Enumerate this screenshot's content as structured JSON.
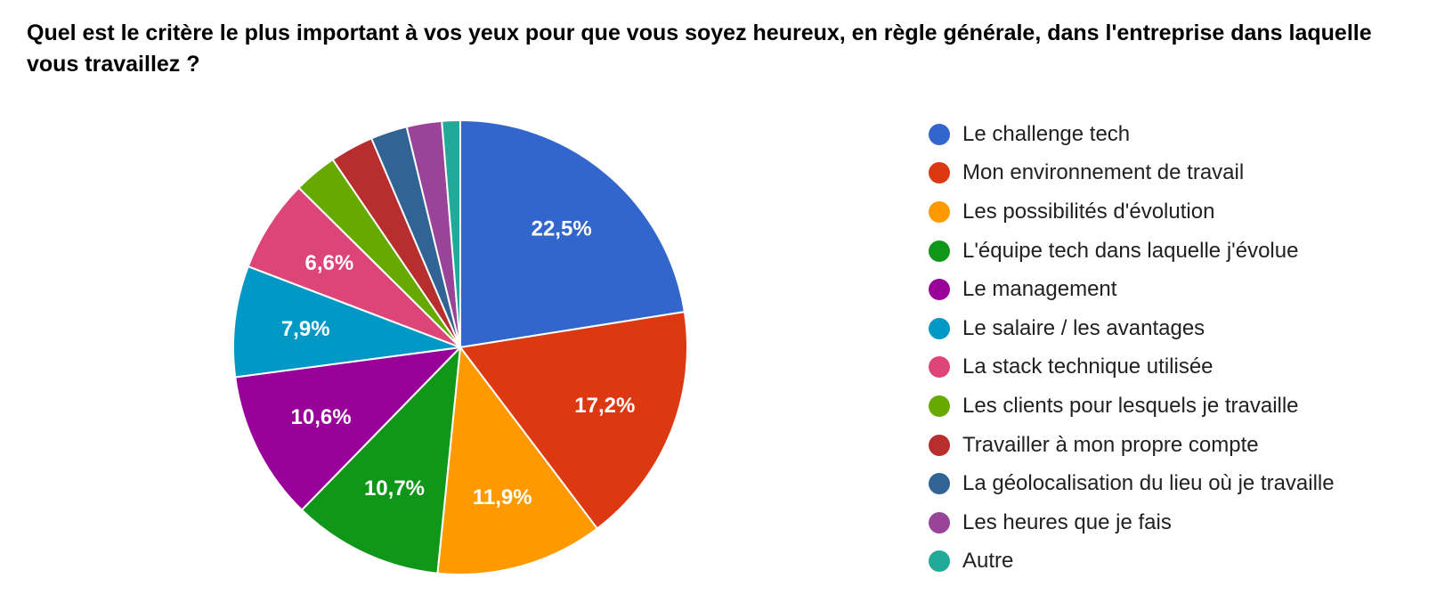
{
  "chart_data": {
    "type": "pie",
    "title": "Quel est le critère le plus important à vos yeux pour que vous soyez heureux, en règle générale, dans l'entreprise dans laquelle vous travaillez ?",
    "legend_position": "right",
    "categories": [
      "Le challenge tech",
      "Mon environnement de travail",
      "Les possibilités d'évolution",
      "L'équipe tech dans laquelle j'évolue",
      "Le management",
      "Le salaire / les avantages",
      "La stack technique utilisée",
      "Les clients pour lesquels je travaille",
      "Travailler à mon propre compte",
      "La géolocalisation du lieu où je travaille",
      "Les heures que je fais",
      "Autre"
    ],
    "values": [
      22.5,
      17.2,
      11.9,
      10.7,
      10.6,
      7.9,
      6.6,
      3.1,
      3.1,
      2.6,
      2.5,
      1.3
    ],
    "labels": [
      "22,5%",
      "17,2%",
      "11,9%",
      "10,7%",
      "10,6%",
      "7,9%",
      "6,6%",
      "",
      "",
      "",
      "",
      ""
    ],
    "colors": [
      "#3366cc",
      "#dc3912",
      "#ff9900",
      "#109618",
      "#990099",
      "#0099c6",
      "#dd4477",
      "#66aa00",
      "#b82e2e",
      "#316395",
      "#994499",
      "#22aa99"
    ]
  }
}
